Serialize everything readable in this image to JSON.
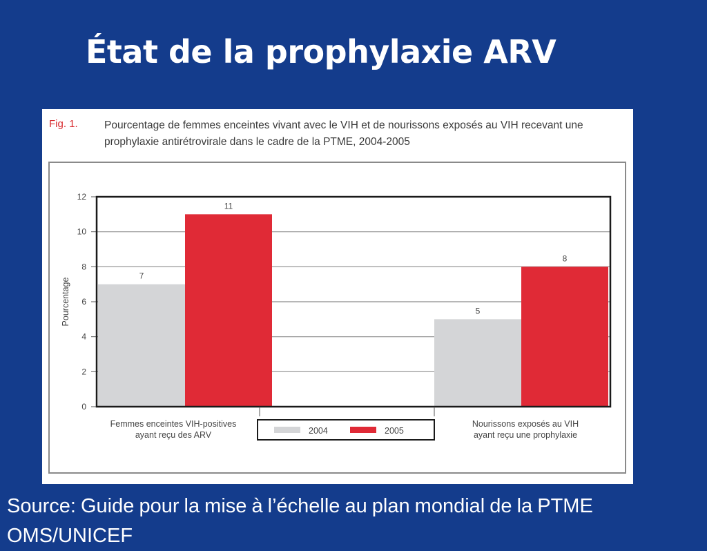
{
  "slide": {
    "title": "État de la prophylaxie ARV",
    "source": "Source: Guide pour la mise à l’échelle au plan mondial de la PTME\nOMS/UNICEF"
  },
  "figure": {
    "label": "Fig. 1.",
    "caption": "Pourcentage de femmes enceintes vivant avec le VIH et de nourissons exposés au VIH recevant une prophylaxie antirétrovirale dans le cadre de la PTME, 2004-2005"
  },
  "chart_data": {
    "type": "bar",
    "categories": [
      [
        "Femmes enceintes VIH-positives",
        "ayant reçu des ARV"
      ],
      [
        "Nourissons exposés au VIH",
        "ayant reçu une prophylaxie"
      ]
    ],
    "series": [
      {
        "name": "2004",
        "color": "#d4d5d7",
        "values": [
          7,
          5
        ]
      },
      {
        "name": "2005",
        "color": "#e02a36",
        "values": [
          11,
          8
        ]
      }
    ],
    "ylabel": "Pourcentage",
    "ylim": [
      0,
      12
    ],
    "yticks": [
      0,
      2,
      4,
      6,
      8,
      10,
      12
    ],
    "grid": true,
    "legend_position": "bottom-center",
    "data_labels": true
  }
}
